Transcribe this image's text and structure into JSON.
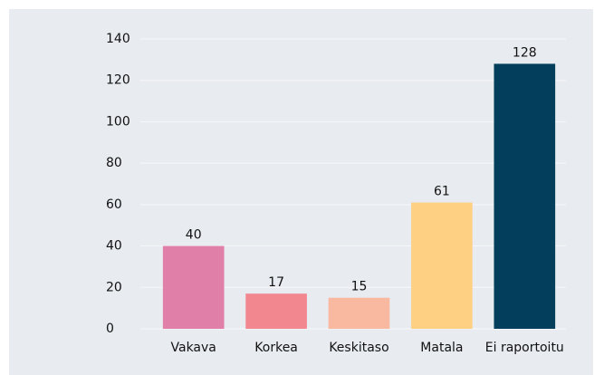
{
  "chart_data": {
    "type": "bar",
    "categories": [
      "Vakava",
      "Korkea",
      "Keskitaso",
      "Matala",
      "Ei raportoitu"
    ],
    "values": [
      40,
      17,
      15,
      61,
      128
    ],
    "colors": [
      "#e07fa8",
      "#f28790",
      "#f9b8a0",
      "#fdd084",
      "#033f5c"
    ],
    "ylim": [
      0,
      140
    ],
    "yticks": [
      0,
      20,
      40,
      60,
      80,
      100,
      120,
      140
    ],
    "grid": true
  }
}
